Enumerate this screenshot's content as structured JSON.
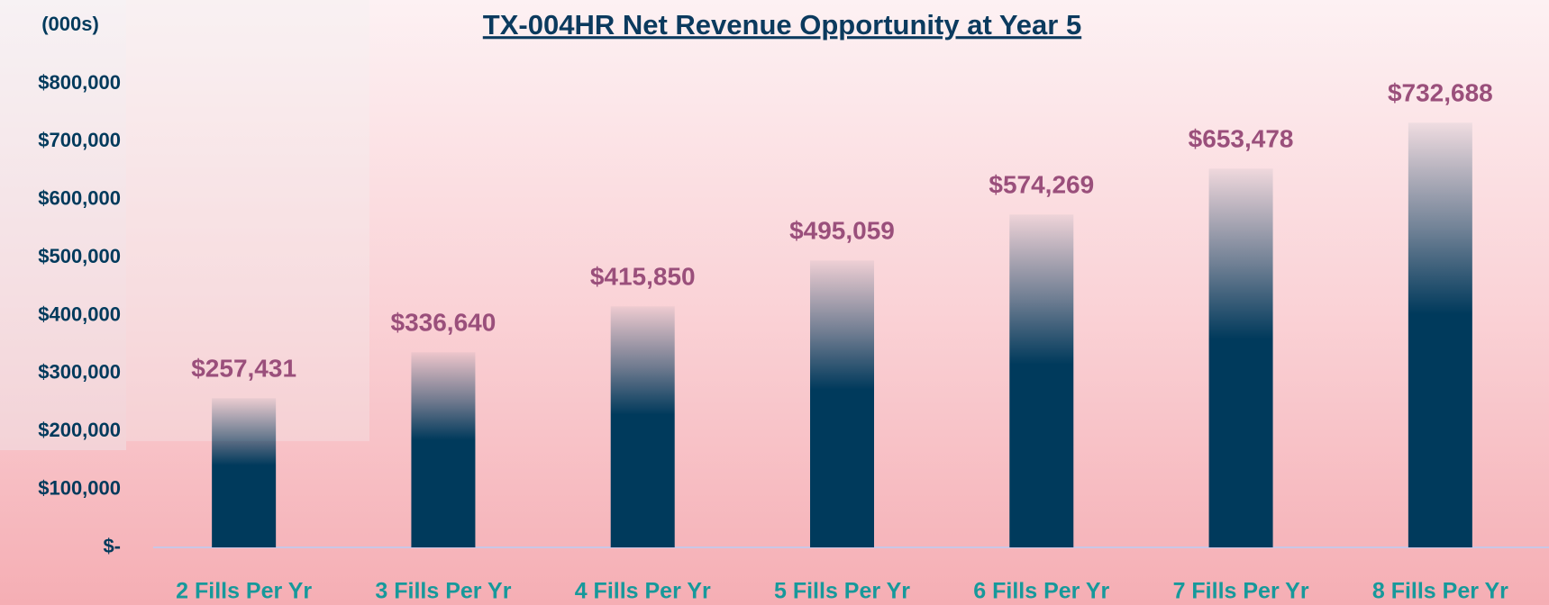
{
  "chart_data": {
    "type": "bar",
    "title": "TX-004HR Net Revenue Opportunity at Year 5",
    "y_unit_label": "(000s)",
    "categories": [
      "2 Fills Per Yr",
      "3 Fills Per Yr",
      "4 Fills Per Yr",
      "5 Fills Per Yr",
      "6 Fills Per Yr",
      "7 Fills Per Yr",
      "8 Fills Per Yr"
    ],
    "values": [
      257431,
      336640,
      415850,
      495059,
      574269,
      653478,
      732688
    ],
    "value_labels": [
      "$257,431",
      "$336,640",
      "$415,850",
      "$495,059",
      "$574,269",
      "$653,478",
      "$732,688"
    ],
    "color": "#003a5c",
    "ylim": [
      0,
      800000
    ],
    "yticks": [
      {
        "value": 0,
        "label": "$-"
      },
      {
        "value": 100000,
        "label": "$100,000"
      },
      {
        "value": 200000,
        "label": "$200,000"
      },
      {
        "value": 300000,
        "label": "$300,000"
      },
      {
        "value": 400000,
        "label": "$400,000"
      },
      {
        "value": 500000,
        "label": "$500,000"
      },
      {
        "value": 600000,
        "label": "$600,000"
      },
      {
        "value": 700000,
        "label": "$700,000"
      },
      {
        "value": 800000,
        "label": "$800,000"
      }
    ],
    "grid": false
  }
}
